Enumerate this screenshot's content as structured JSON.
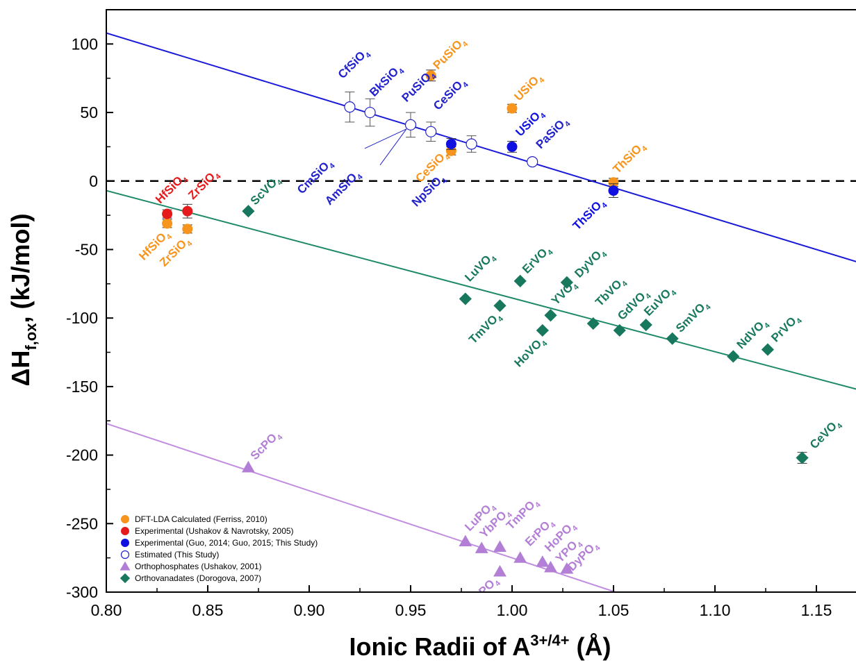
{
  "chart_data": {
    "type": "scatter",
    "title": "",
    "xlabel": "Ionic Radii of A",
    "xlabel_sup": "3+/4+",
    "xlabel_unit": "(Å)",
    "ylabel": "ΔH",
    "ylabel_sub": "f,ox",
    "ylabel_unit": ", (kJ/mol)",
    "xlim": [
      0.8,
      1.17
    ],
    "ylim": [
      -300,
      125
    ],
    "xticks": [
      "0.80",
      "0.85",
      "0.90",
      "0.95",
      "1.00",
      "1.05",
      "1.10",
      "1.15"
    ],
    "yticks": [
      "100",
      "50",
      "0",
      "-50",
      "-100",
      "-150",
      "-200",
      "-250",
      "-300"
    ],
    "reference_line_y": 0,
    "colors": {
      "dft": "#f7941d",
      "experimental_ushakov": "#e41a1c",
      "experimental_guo": "#1010e0",
      "estimated": "#2222cc",
      "phosphate": "#b37fd6",
      "vanadate": "#17785e",
      "silicate_fit": "#1a1ad8",
      "vanadate_fit": "#1f8a6a",
      "phosphate_fit": "#c08ee0"
    },
    "fit_lines": [
      {
        "name": "silicate-fit",
        "color_key": "silicate_fit",
        "x": [
          0.8,
          1.17
        ],
        "y": [
          108,
          -59
        ]
      },
      {
        "name": "vanadate-fit",
        "color_key": "vanadate_fit",
        "x": [
          0.8,
          1.17
        ],
        "y": [
          -7,
          -152
        ]
      },
      {
        "name": "phosphate-fit",
        "color_key": "phosphate_fit",
        "x": [
          0.8,
          1.051
        ],
        "y": [
          -177,
          -300
        ]
      }
    ],
    "series": [
      {
        "name": "DFT-LDA Calculated (Ferriss, 2010)",
        "marker": "circle",
        "color_key": "dft",
        "filled": true,
        "points": [
          {
            "x": 0.83,
            "y": -31,
            "err": 3
          },
          {
            "x": 0.84,
            "y": -35,
            "err": 3
          },
          {
            "x": 0.96,
            "y": 77,
            "err": 4
          },
          {
            "x": 0.97,
            "y": 22,
            "err": 3
          },
          {
            "x": 1.0,
            "y": 53,
            "err": 3
          },
          {
            "x": 1.05,
            "y": -1,
            "err": 3
          }
        ]
      },
      {
        "name": "Experimental (Ushakov & Navrotsky, 2005)",
        "marker": "circle",
        "color_key": "experimental_ushakov",
        "filled": true,
        "points": [
          {
            "x": 0.83,
            "y": -24,
            "err": 3
          },
          {
            "x": 0.84,
            "y": -22,
            "err": 5
          }
        ]
      },
      {
        "name": "Experimental (Guo, 2014; Guo, 2015; This Study)",
        "marker": "circle",
        "color_key": "experimental_guo",
        "filled": true,
        "points": [
          {
            "x": 0.97,
            "y": 27,
            "err": 4
          },
          {
            "x": 1.0,
            "y": 25,
            "err": 4
          },
          {
            "x": 1.05,
            "y": -7,
            "err": 5
          }
        ]
      },
      {
        "name": "Estimated (This Study)",
        "marker": "circle",
        "color_key": "estimated",
        "filled": false,
        "points": [
          {
            "x": 0.92,
            "y": 54,
            "err": 11
          },
          {
            "x": 0.93,
            "y": 50,
            "err": 10
          },
          {
            "x": 0.95,
            "y": 41,
            "err": 9
          },
          {
            "x": 0.96,
            "y": 36,
            "err": 7
          },
          {
            "x": 0.98,
            "y": 27,
            "err": 6
          },
          {
            "x": 1.01,
            "y": 14,
            "err": 2
          }
        ]
      },
      {
        "name": "Orthophosphates (Ushakov, 2001)",
        "marker": "triangle",
        "color_key": "phosphate",
        "filled": true,
        "points": [
          {
            "x": 0.87,
            "y": -209
          },
          {
            "x": 0.977,
            "y": -263
          },
          {
            "x": 0.985,
            "y": -268
          },
          {
            "x": 0.994,
            "y": -267
          },
          {
            "x": 0.994,
            "y": -285
          },
          {
            "x": 1.004,
            "y": -275
          },
          {
            "x": 1.015,
            "y": -278
          },
          {
            "x": 1.019,
            "y": -282
          },
          {
            "x": 1.027,
            "y": -283
          }
        ]
      },
      {
        "name": "Orthovanadates (Dorogova, 2007)",
        "marker": "diamond",
        "color_key": "vanadate",
        "filled": true,
        "points": [
          {
            "x": 0.87,
            "y": -22
          },
          {
            "x": 0.977,
            "y": -86
          },
          {
            "x": 0.994,
            "y": -91
          },
          {
            "x": 1.004,
            "y": -73
          },
          {
            "x": 1.015,
            "y": -109
          },
          {
            "x": 1.019,
            "y": -98
          },
          {
            "x": 1.027,
            "y": -74
          },
          {
            "x": 1.04,
            "y": -104
          },
          {
            "x": 1.053,
            "y": -109
          },
          {
            "x": 1.066,
            "y": -105
          },
          {
            "x": 1.079,
            "y": -115
          },
          {
            "x": 1.109,
            "y": -128
          },
          {
            "x": 1.126,
            "y": -123
          },
          {
            "x": 1.143,
            "y": -202,
            "err": 4
          }
        ]
      }
    ],
    "annotations": [
      {
        "base": "CfSiO",
        "sub": "4",
        "x": 0.92,
        "y": 54,
        "dx": -10,
        "dy": -40,
        "rot": -45,
        "anchor": "start",
        "color_key": "estimated"
      },
      {
        "base": "BkSiO",
        "sub": "4",
        "x": 0.93,
        "y": 50,
        "dx": 6,
        "dy": -22,
        "rot": -45,
        "anchor": "start",
        "color_key": "estimated"
      },
      {
        "base": "CmSiO",
        "sub": "4",
        "x": 0.95,
        "y": 41,
        "dx": -112,
        "dy": 56,
        "rot": -45,
        "anchor": "end",
        "color_key": "estimated"
      },
      {
        "base": "AmSiO",
        "sub": "4",
        "x": 0.95,
        "y": 41,
        "dx": -72,
        "dy": 72,
        "rot": -45,
        "anchor": "end",
        "color_key": "estimated"
      },
      {
        "base": "PuSiO",
        "sub": "4",
        "x": 0.96,
        "y": 36,
        "dx": -35,
        "dy": -42,
        "rot": -45,
        "anchor": "start",
        "color_key": "estimated"
      },
      {
        "base": "CeSiO",
        "sub": "4",
        "x": 0.98,
        "y": 27,
        "dx": -48,
        "dy": -48,
        "rot": -45,
        "anchor": "start",
        "color_key": "estimated"
      },
      {
        "base": "NpSiO",
        "sub": "4",
        "x": 0.98,
        "y": 27,
        "dx": -38,
        "dy": 50,
        "rot": -45,
        "anchor": "end",
        "color_key": "estimated"
      },
      {
        "base": "USiO",
        "sub": "4",
        "x": 1.0,
        "y": 25,
        "dx": 12,
        "dy": -14,
        "rot": -45,
        "anchor": "start",
        "color_key": "experimental_guo"
      },
      {
        "base": "PaSiO",
        "sub": "4",
        "x": 1.01,
        "y": 14,
        "dx": 12,
        "dy": -18,
        "rot": -45,
        "anchor": "start",
        "color_key": "estimated"
      },
      {
        "base": "ThSiO",
        "sub": "4",
        "x": 1.05,
        "y": -7,
        "dx": -12,
        "dy": 18,
        "rot": -45,
        "anchor": "end",
        "color_key": "experimental_guo"
      },
      {
        "base": "PuSiO",
        "sub": "4",
        "x": 0.96,
        "y": 77,
        "dx": 10,
        "dy": -8,
        "rot": -45,
        "anchor": "start",
        "color_key": "dft"
      },
      {
        "base": "USiO",
        "sub": "4",
        "x": 1.0,
        "y": 53,
        "dx": 10,
        "dy": -10,
        "rot": -45,
        "anchor": "start",
        "color_key": "dft"
      },
      {
        "base": "CeSiO",
        "sub": "4",
        "x": 0.97,
        "y": 22,
        "dx": -4,
        "dy": 6,
        "rot": -45,
        "anchor": "end",
        "color_key": "dft"
      },
      {
        "base": "ThSiO",
        "sub": "4",
        "x": 1.05,
        "y": -1,
        "dx": 6,
        "dy": -12,
        "rot": -45,
        "anchor": "start",
        "color_key": "dft"
      },
      {
        "base": "HfSiO",
        "sub": "4",
        "x": 0.83,
        "y": -24,
        "dx": -10,
        "dy": -14,
        "rot": -45,
        "anchor": "start",
        "color_key": "experimental_ushakov"
      },
      {
        "base": "ZrSiO",
        "sub": "4",
        "x": 0.84,
        "y": -22,
        "dx": 8,
        "dy": -16,
        "rot": -45,
        "anchor": "start",
        "color_key": "experimental_ushakov"
      },
      {
        "base": "HfSiO",
        "sub": "4",
        "x": 0.83,
        "y": -31,
        "dx": 4,
        "dy": 16,
        "rot": -45,
        "anchor": "end",
        "color_key": "dft"
      },
      {
        "base": "ZrSiO",
        "sub": "4",
        "x": 0.84,
        "y": -35,
        "dx": 4,
        "dy": 18,
        "rot": -45,
        "anchor": "end",
        "color_key": "dft"
      },
      {
        "base": "ScVO",
        "sub": "4",
        "x": 0.87,
        "y": -22,
        "dx": 10,
        "dy": -8,
        "rot": -45,
        "anchor": "start",
        "color_key": "vanadate"
      },
      {
        "base": "LuVO",
        "sub": "4",
        "x": 0.977,
        "y": -86,
        "dx": 6,
        "dy": -24,
        "rot": -45,
        "anchor": "start",
        "color_key": "vanadate"
      },
      {
        "base": "ErVO",
        "sub": "4",
        "x": 1.004,
        "y": -73,
        "dx": 10,
        "dy": -10,
        "rot": -45,
        "anchor": "start",
        "color_key": "vanadate"
      },
      {
        "base": "DyVO",
        "sub": "4",
        "x": 1.027,
        "y": -74,
        "dx": 18,
        "dy": -6,
        "rot": -45,
        "anchor": "start",
        "color_key": "vanadate"
      },
      {
        "base": "TmVO",
        "sub": "4",
        "x": 0.994,
        "y": -91,
        "dx": 2,
        "dy": 16,
        "rot": -45,
        "anchor": "end",
        "color_key": "vanadate"
      },
      {
        "base": "YVO",
        "sub": "4",
        "x": 1.019,
        "y": -98,
        "dx": 8,
        "dy": -14,
        "rot": -45,
        "anchor": "start",
        "color_key": "vanadate"
      },
      {
        "base": "HoVO",
        "sub": "4",
        "x": 1.015,
        "y": -109,
        "dx": 4,
        "dy": 16,
        "rot": -45,
        "anchor": "end",
        "color_key": "vanadate"
      },
      {
        "base": "TbVO",
        "sub": "4",
        "x": 1.04,
        "y": -104,
        "dx": 10,
        "dy": -24,
        "rot": -45,
        "anchor": "start",
        "color_key": "vanadate"
      },
      {
        "base": "GdVO",
        "sub": "4",
        "x": 1.053,
        "y": -109,
        "dx": 4,
        "dy": -14,
        "rot": -45,
        "anchor": "start",
        "color_key": "vanadate"
      },
      {
        "base": "EuVO",
        "sub": "4",
        "x": 1.066,
        "y": -105,
        "dx": 4,
        "dy": -12,
        "rot": -45,
        "anchor": "start",
        "color_key": "vanadate"
      },
      {
        "base": "SmVO",
        "sub": "4",
        "x": 1.079,
        "y": -115,
        "dx": 12,
        "dy": -8,
        "rot": -45,
        "anchor": "start",
        "color_key": "vanadate"
      },
      {
        "base": "NdVO",
        "sub": "4",
        "x": 1.109,
        "y": -128,
        "dx": 12,
        "dy": -10,
        "rot": -45,
        "anchor": "start",
        "color_key": "vanadate"
      },
      {
        "base": "PrVO",
        "sub": "4",
        "x": 1.126,
        "y": -123,
        "dx": 12,
        "dy": -10,
        "rot": -45,
        "anchor": "start",
        "color_key": "vanadate"
      },
      {
        "base": "CeVO",
        "sub": "4",
        "x": 1.143,
        "y": -202,
        "dx": 18,
        "dy": -12,
        "rot": -45,
        "anchor": "start",
        "color_key": "vanadate"
      },
      {
        "base": "ScPO",
        "sub": "4",
        "x": 0.87,
        "y": -209,
        "dx": 10,
        "dy": -10,
        "rot": -45,
        "anchor": "start",
        "color_key": "phosphate"
      },
      {
        "base": "LuPO",
        "sub": "4",
        "x": 0.977,
        "y": -263,
        "dx": 6,
        "dy": -14,
        "rot": -45,
        "anchor": "start",
        "color_key": "phosphate"
      },
      {
        "base": "YbPO",
        "sub": "4",
        "x": 0.985,
        "y": -268,
        "dx": 4,
        "dy": -14,
        "rot": -45,
        "anchor": "start",
        "color_key": "phosphate"
      },
      {
        "base": "TmPO",
        "sub": "4",
        "x": 0.994,
        "y": -267,
        "dx": 16,
        "dy": -24,
        "rot": -45,
        "anchor": "start",
        "color_key": "phosphate"
      },
      {
        "base": "TbPO",
        "sub": "4",
        "x": 0.994,
        "y": -285,
        "dx": -2,
        "dy": 14,
        "rot": -45,
        "anchor": "end",
        "color_key": "phosphate"
      },
      {
        "base": "ErPO",
        "sub": "4",
        "x": 1.004,
        "y": -275,
        "dx": 14,
        "dy": -16,
        "rot": -45,
        "anchor": "start",
        "color_key": "phosphate"
      },
      {
        "base": "HoPO",
        "sub": "4",
        "x": 1.015,
        "y": -278,
        "dx": 10,
        "dy": -14,
        "rot": -45,
        "anchor": "start",
        "color_key": "phosphate"
      },
      {
        "base": "YPO",
        "sub": "4",
        "x": 1.019,
        "y": -282,
        "dx": 14,
        "dy": -6,
        "rot": -45,
        "anchor": "start",
        "color_key": "phosphate"
      },
      {
        "base": "DyPO",
        "sub": "4",
        "x": 1.027,
        "y": -283,
        "dx": 8,
        "dy": 4,
        "rot": -45,
        "anchor": "start",
        "color_key": "phosphate"
      }
    ],
    "leader_lines": [
      {
        "from": [
          0.95,
          41
        ],
        "to_dx": -60,
        "to_dy": 28
      },
      {
        "from": [
          0.95,
          41
        ],
        "to_dx": -38,
        "to_dy": 52
      }
    ],
    "legend": {
      "position": "bottom-left",
      "entries": [
        {
          "label": "DFT-LDA Calculated (Ferriss, 2010)",
          "marker": "circle",
          "color_key": "dft",
          "filled": true
        },
        {
          "label": "Experimental (Ushakov & Navrotsky, 2005)",
          "marker": "circle",
          "color_key": "experimental_ushakov",
          "filled": true
        },
        {
          "label": "Experimental (Guo, 2014; Guo, 2015; This Study)",
          "marker": "circle",
          "color_key": "experimental_guo",
          "filled": true
        },
        {
          "label": "Estimated (This Study)",
          "marker": "circle",
          "color_key": "estimated",
          "filled": false
        },
        {
          "label": "Orthophosphates (Ushakov, 2001)",
          "marker": "triangle",
          "color_key": "phosphate",
          "filled": true
        },
        {
          "label": "Orthovanadates (Dorogova, 2007)",
          "marker": "diamond",
          "color_key": "vanadate",
          "filled": true
        }
      ]
    }
  }
}
